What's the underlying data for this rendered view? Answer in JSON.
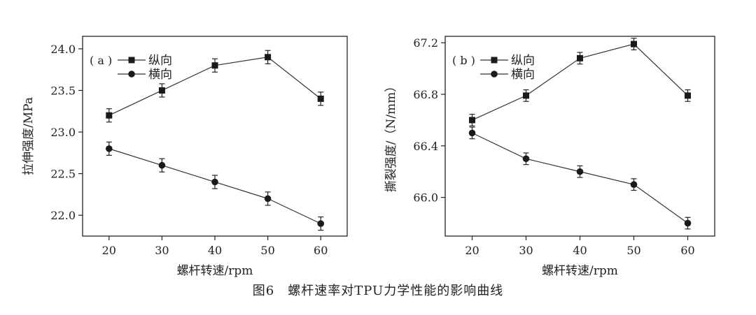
{
  "figure_caption": "图6　螺杆速率对TPU力学性能的影响曲线",
  "chart_data": [
    {
      "type": "line",
      "panel_label": "( a )",
      "xlabel": "螺杆转速/rpm",
      "ylabel": "拉伸强度/MPa",
      "x": [
        20,
        30,
        40,
        50,
        60
      ],
      "xlim": [
        15,
        65
      ],
      "ylim": [
        21.75,
        24.15
      ],
      "yticks": [
        22.0,
        22.5,
        23.0,
        23.5,
        24.0
      ],
      "ytick_labels": [
        "22.0",
        "22.5",
        "23.0",
        "23.5",
        "24.0"
      ],
      "xtick_labels": [
        "20",
        "30",
        "40",
        "50",
        "60"
      ],
      "legend_position": "top-left",
      "series": [
        {
          "name": "纵向",
          "marker": "square",
          "values": [
            23.2,
            23.5,
            23.8,
            23.9,
            23.4
          ],
          "error": 0.08
        },
        {
          "name": "横向",
          "marker": "circle",
          "values": [
            22.8,
            22.6,
            22.4,
            22.2,
            21.9
          ],
          "error": 0.08
        }
      ]
    },
    {
      "type": "line",
      "panel_label": "( b )",
      "xlabel": "螺杆转速/rpm",
      "ylabel": "撕裂强度/（N/mm）",
      "x": [
        20,
        30,
        40,
        50,
        60
      ],
      "xlim": [
        15,
        65
      ],
      "ylim": [
        65.7,
        67.25
      ],
      "yticks": [
        66.0,
        66.4,
        66.8,
        67.2
      ],
      "ytick_labels": [
        "66.0",
        "66.4",
        "66.8",
        "67.2"
      ],
      "xtick_labels": [
        "20",
        "30",
        "40",
        "50",
        "60"
      ],
      "legend_position": "top-left",
      "series": [
        {
          "name": "纵向",
          "marker": "square",
          "values": [
            66.6,
            66.79,
            67.08,
            67.19,
            66.79
          ],
          "error": 0.045
        },
        {
          "name": "横向",
          "marker": "circle",
          "values": [
            66.5,
            66.3,
            66.2,
            66.1,
            65.8
          ],
          "error": 0.045
        }
      ]
    }
  ]
}
